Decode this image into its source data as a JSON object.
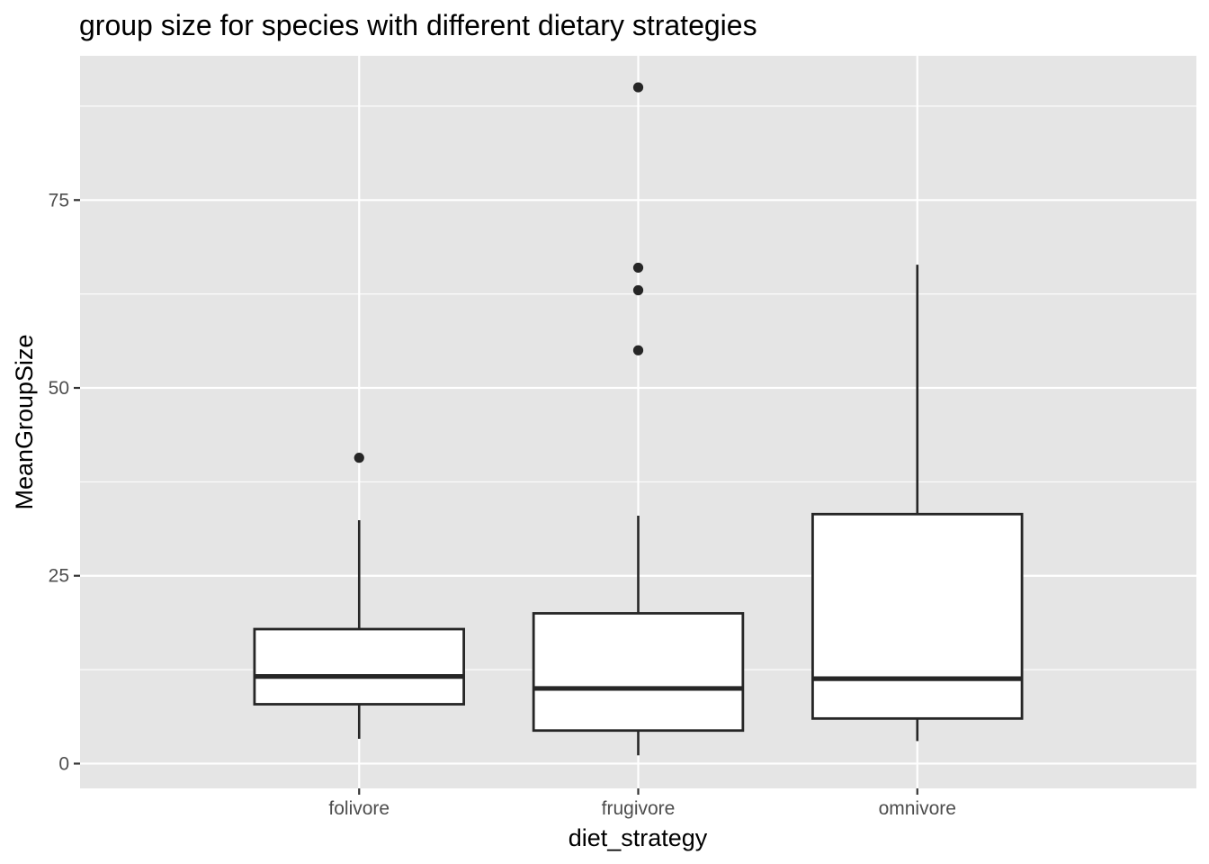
{
  "chart_data": {
    "type": "boxplot",
    "title": "group size for species with different dietary strategies",
    "xlabel": "diet_strategy",
    "ylabel": "MeanGroupSize",
    "ylim": [
      -3.3,
      94.2
    ],
    "y_ticks": [
      0,
      25,
      50,
      75
    ],
    "y_tick_labels": [
      "0",
      "25",
      "50",
      "75"
    ],
    "grid": true,
    "panel_background": "#e5e5e5",
    "grid_color": "#ffffff",
    "box_fill": "#ffffff",
    "line_color": "#262626",
    "categories": [
      "folivore",
      "frugivore",
      "omnivore"
    ],
    "boxes": [
      {
        "category": "folivore",
        "whisker_low": 3.3,
        "q1": 7.9,
        "median": 11.6,
        "q3": 17.9,
        "whisker_high": 32.4,
        "outliers": [
          40.7
        ]
      },
      {
        "category": "frugivore",
        "whisker_low": 1.1,
        "q1": 4.4,
        "median": 10.0,
        "q3": 20.0,
        "whisker_high": 33.0,
        "outliers": [
          55.0,
          63.0,
          66.0,
          90.0
        ]
      },
      {
        "category": "omnivore",
        "whisker_low": 3.0,
        "q1": 6.0,
        "median": 11.3,
        "q3": 33.2,
        "whisker_high": 66.4,
        "outliers": []
      }
    ]
  }
}
